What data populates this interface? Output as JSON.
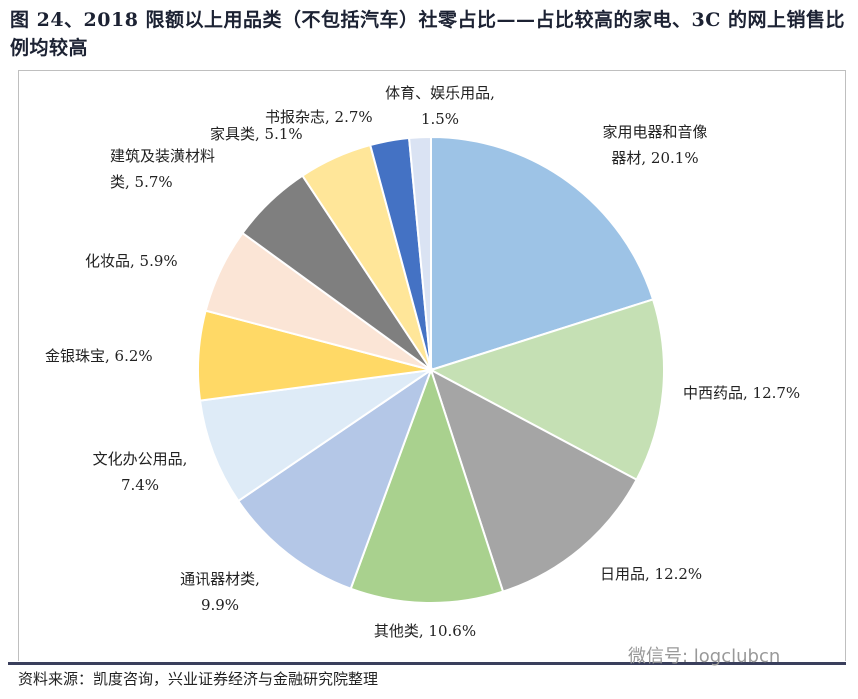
{
  "title": "图 24、2018 限额以上用品类（不包括汽车）社零占比——占比较高的家电、3C 的网上销售比例均较高",
  "source": "资料来源：凯度咨询，兴业证券经济与金融研究院整理",
  "watermark": "微信号: logclubcn",
  "chart_data": {
    "type": "pie",
    "title": "",
    "start": "top",
    "direction": "clockwise",
    "unit": "%",
    "categories": [
      "家用电器和音像器材",
      "中西药品",
      "日用品",
      "其他类",
      "通讯器材类",
      "文化办公用品",
      "金银珠宝",
      "化妆品",
      "建筑及装潢材料类",
      "家具类",
      "书报杂志",
      "体育、娱乐用品"
    ],
    "values": [
      20.1,
      12.7,
      12.2,
      10.6,
      9.9,
      7.4,
      6.2,
      5.9,
      5.7,
      5.1,
      2.7,
      1.5
    ],
    "colors": [
      "#9dc3e6",
      "#c5e0b4",
      "#a5a5a5",
      "#a9d18e",
      "#b4c7e7",
      "#deebf7",
      "#ffd966",
      "#fbe5d6",
      "#7f7f7f",
      "#ffe699",
      "#4472c4",
      "#dae3f3"
    ],
    "legend": "none",
    "data_labels": "outside"
  }
}
